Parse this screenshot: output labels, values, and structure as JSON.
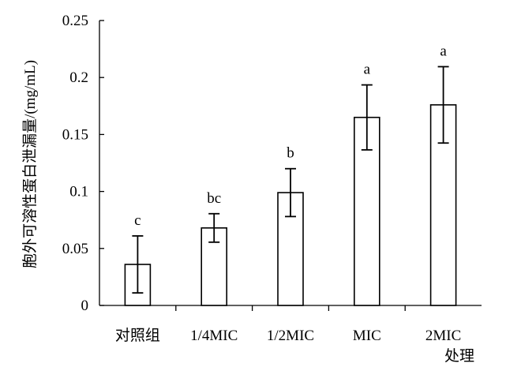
{
  "chart_data": {
    "type": "bar",
    "title": "",
    "xlabel": "处理",
    "ylabel": "胞外可溶性蛋白泄漏量/(mg/mL)",
    "categories": [
      "对照组",
      "1/4MIC",
      "1/2MIC",
      "MIC",
      "2MIC"
    ],
    "values": [
      0.036,
      0.068,
      0.099,
      0.165,
      0.176
    ],
    "error": [
      0.025,
      0.0125,
      0.021,
      0.0285,
      0.0335
    ],
    "significance": [
      "c",
      "bc",
      "b",
      "a",
      "a"
    ],
    "ylim": [
      0,
      0.25
    ],
    "yticks": [
      0,
      0.05,
      0.1,
      0.15,
      0.2,
      0.25
    ],
    "ytick_labels": [
      "0",
      "0.05",
      "0.1",
      "0.15",
      "0.2",
      "0.25"
    ],
    "grid": false,
    "legend": "none",
    "colors": {
      "bar_fill": "#ffffff",
      "bar_stroke": "#000000"
    }
  }
}
